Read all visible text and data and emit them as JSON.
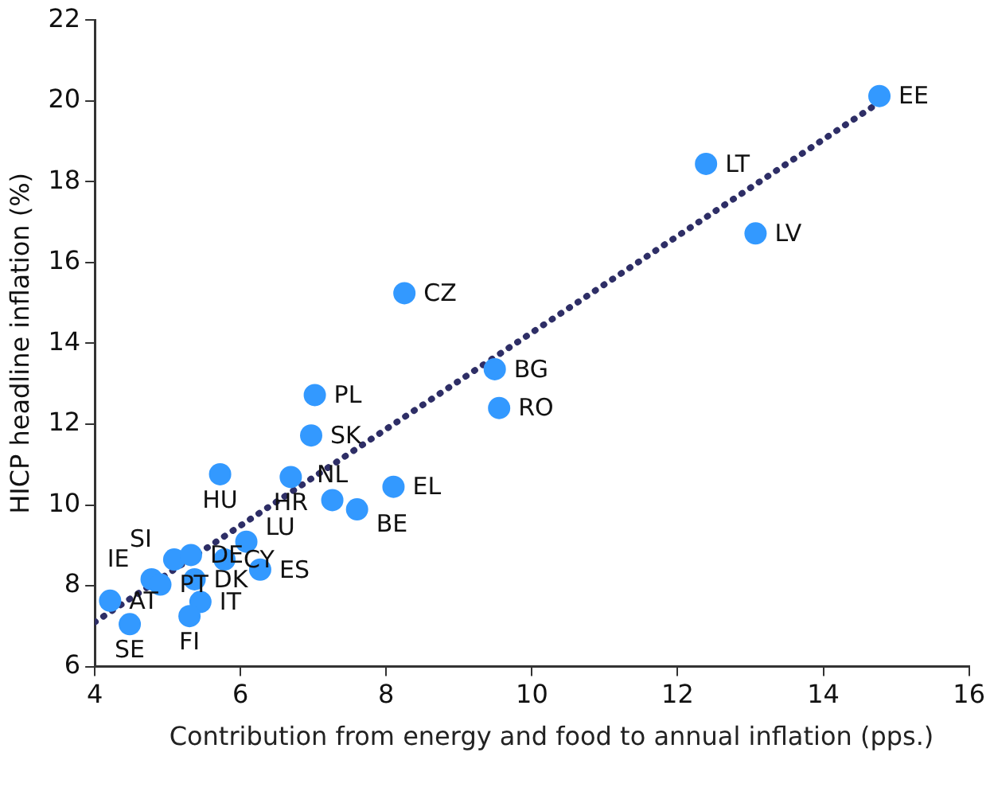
{
  "chart_data": {
    "type": "scatter",
    "xlabel": "Contribution from energy and food to annual inflation (pps.)",
    "ylabel": "HICP headline inflation (%)",
    "xlim": [
      4,
      16
    ],
    "xticks": [
      4,
      6,
      8,
      10,
      12,
      14,
      16
    ],
    "ylim": [
      6,
      22
    ],
    "yticks": [
      6,
      8,
      10,
      12,
      14,
      16,
      18,
      20,
      22
    ],
    "grid": false,
    "legend": false,
    "marker": "circle",
    "series": [
      {
        "type": "scatter",
        "color": "#3399ff",
        "x": [
          14.77,
          12.39,
          13.07,
          8.25,
          9.49,
          9.55,
          7.02,
          6.97,
          5.72,
          6.69,
          7.26,
          7.6,
          8.1,
          6.08,
          4.78,
          4.21,
          5.78,
          5.09,
          6.27,
          5.32,
          4.9,
          5.37,
          5.45,
          4.48,
          5.3
        ],
        "values": [
          20.12,
          18.44,
          16.72,
          15.24,
          13.36,
          12.4,
          12.72,
          11.72,
          10.76,
          10.69,
          10.12,
          9.89,
          10.45,
          9.09,
          8.16,
          7.63,
          8.65,
          8.65,
          8.4,
          8.76,
          8.03,
          8.16,
          7.6,
          7.05,
          7.25
        ],
        "value_labels": [
          "EE",
          "LT",
          "LV",
          "CZ",
          "BG",
          "RO",
          "PL",
          "SK",
          "HU",
          "HR",
          "NL",
          "BE",
          "EL",
          "LU",
          "IE",
          "AT",
          "CY",
          "SI",
          "ES",
          "DE",
          "PT",
          "DK",
          "IT",
          "SE",
          "FI"
        ]
      },
      {
        "type": "line",
        "color": "#2e2e66",
        "line_style": "dotted",
        "marker": "none",
        "x": [
          4.0,
          14.8
        ],
        "values": [
          7.1,
          20.0
        ]
      }
    ]
  }
}
